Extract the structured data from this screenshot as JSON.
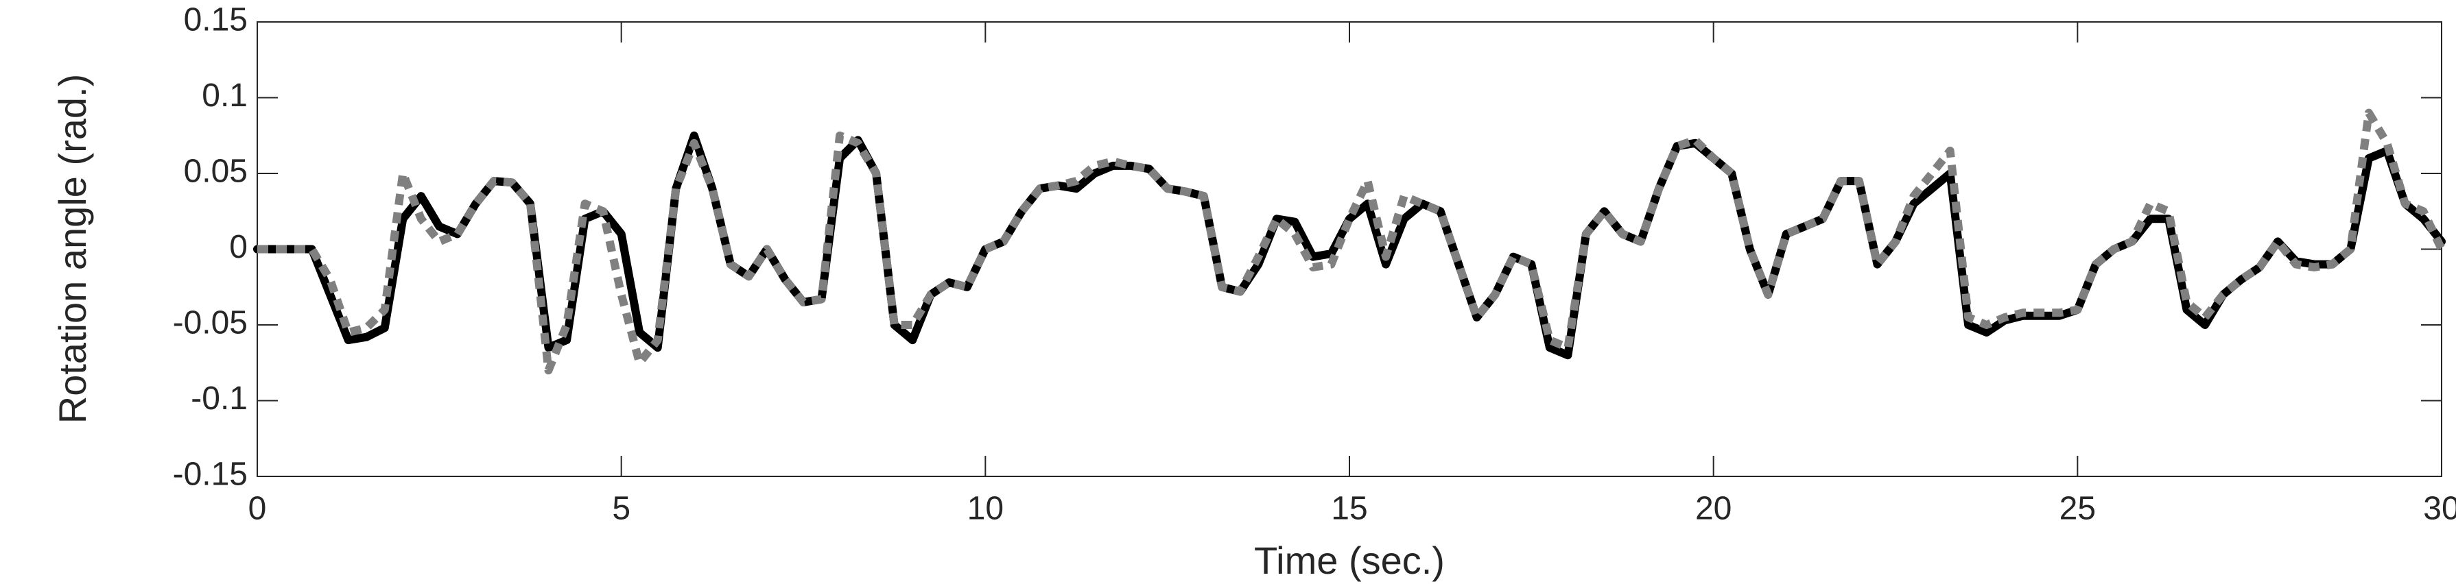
{
  "chart_data": {
    "type": "line",
    "x_label": "Time (sec.)",
    "y_label": "Rotation angle (rad.)",
    "x": [
      0,
      0.25,
      0.5,
      0.75,
      1,
      1.25,
      1.5,
      1.75,
      2,
      2.25,
      2.5,
      2.75,
      3,
      3.25,
      3.5,
      3.75,
      4,
      4.25,
      4.5,
      4.75,
      5,
      5.25,
      5.5,
      5.75,
      6,
      6.25,
      6.5,
      6.75,
      7,
      7.25,
      7.5,
      7.75,
      8,
      8.25,
      8.5,
      8.75,
      9,
      9.25,
      9.5,
      9.75,
      10,
      10.25,
      10.5,
      10.75,
      11,
      11.25,
      11.5,
      11.75,
      12,
      12.25,
      12.5,
      12.75,
      13,
      13.25,
      13.5,
      13.75,
      14,
      14.25,
      14.5,
      14.75,
      15,
      15.25,
      15.5,
      15.75,
      16,
      16.25,
      16.5,
      16.75,
      17,
      17.25,
      17.5,
      17.75,
      18,
      18.25,
      18.5,
      18.75,
      19,
      19.25,
      19.5,
      19.75,
      20,
      20.25,
      20.5,
      20.75,
      21,
      21.25,
      21.5,
      21.75,
      22,
      22.25,
      22.5,
      22.75,
      23,
      23.25,
      23.5,
      23.75,
      24,
      24.25,
      24.5,
      24.75,
      25,
      25.25,
      25.5,
      25.75,
      26,
      26.25,
      26.5,
      26.75,
      27,
      27.25,
      27.5,
      27.75,
      28,
      28.25,
      28.5,
      28.75,
      29,
      29.25,
      29.5,
      29.75,
      30
    ],
    "series": [
      {
        "color": "#000000",
        "dash": "solid",
        "values": [
          0,
          0,
          0,
          0,
          -0.03,
          -0.06,
          -0.058,
          -0.052,
          0.02,
          0.035,
          0.015,
          0.01,
          0.03,
          0.045,
          0.044,
          0.03,
          -0.065,
          -0.06,
          0.02,
          0.025,
          0.01,
          -0.055,
          -0.065,
          0.04,
          0.075,
          0.04,
          -0.01,
          -0.018,
          0,
          -0.02,
          -0.035,
          -0.033,
          0.06,
          0.072,
          0.05,
          -0.05,
          -0.06,
          -0.03,
          -0.022,
          -0.025,
          0,
          0.005,
          0.025,
          0.04,
          0.042,
          0.04,
          0.05,
          0.055,
          0.055,
          0.053,
          0.04,
          0.038,
          0.035,
          -0.025,
          -0.028,
          -0.01,
          0.02,
          0.018,
          -0.005,
          -0.003,
          0.02,
          0.03,
          -0.01,
          0.02,
          0.03,
          0.025,
          -0.01,
          -0.045,
          -0.03,
          -0.005,
          -0.01,
          -0.065,
          -0.07,
          0.01,
          0.025,
          0.01,
          0.005,
          0.04,
          0.068,
          0.07,
          0.06,
          0.05,
          0,
          -0.03,
          0.01,
          0.015,
          0.02,
          0.045,
          0.045,
          -0.01,
          0.005,
          0.03,
          0.04,
          0.05,
          -0.05,
          -0.055,
          -0.047,
          -0.044,
          -0.044,
          -0.044,
          -0.04,
          -0.01,
          0,
          0.005,
          0.02,
          0.02,
          -0.04,
          -0.05,
          -0.03,
          -0.02,
          -0.012,
          0.005,
          -0.008,
          -0.01,
          -0.01,
          0,
          0.06,
          0.065,
          0.03,
          0.02,
          0.005
        ]
      },
      {
        "color": "#808080",
        "dash": "dashed",
        "values": [
          0,
          0,
          0,
          0,
          -0.02,
          -0.055,
          -0.052,
          -0.04,
          0.05,
          0.02,
          0.005,
          0.01,
          0.03,
          0.045,
          0.044,
          0.03,
          -0.08,
          -0.05,
          0.03,
          0.025,
          -0.03,
          -0.075,
          -0.06,
          0.04,
          0.07,
          0.04,
          -0.01,
          -0.018,
          0,
          -0.02,
          -0.035,
          -0.033,
          0.075,
          0.07,
          0.05,
          -0.05,
          -0.05,
          -0.03,
          -0.022,
          -0.025,
          0,
          0.005,
          0.025,
          0.04,
          0.042,
          0.045,
          0.055,
          0.058,
          0.055,
          0.053,
          0.04,
          0.038,
          0.035,
          -0.025,
          -0.028,
          -0.005,
          0.02,
          0.01,
          -0.012,
          -0.01,
          0.02,
          0.045,
          -0.005,
          0.035,
          0.03,
          0.025,
          -0.01,
          -0.045,
          -0.03,
          -0.005,
          -0.01,
          -0.06,
          -0.065,
          0.01,
          0.025,
          0.01,
          0.005,
          0.04,
          0.068,
          0.072,
          0.06,
          0.05,
          0,
          -0.03,
          0.01,
          0.015,
          0.02,
          0.045,
          0.045,
          -0.01,
          0.005,
          0.035,
          0.05,
          0.065,
          -0.045,
          -0.05,
          -0.045,
          -0.042,
          -0.042,
          -0.042,
          -0.04,
          -0.01,
          0,
          0.005,
          0.03,
          0.025,
          -0.035,
          -0.045,
          -0.03,
          -0.02,
          -0.012,
          0.005,
          -0.01,
          -0.012,
          -0.01,
          0,
          0.09,
          0.07,
          0.03,
          0.025,
          0
        ]
      }
    ],
    "xlim": [
      0,
      30
    ],
    "xticks": [
      0,
      5,
      10,
      15,
      20,
      25,
      30
    ],
    "ylim": [
      -0.15,
      0.15
    ],
    "yticks": [
      -0.15,
      -0.1,
      -0.05,
      0,
      0.05,
      0.1,
      0.15
    ],
    "grid": false
  }
}
